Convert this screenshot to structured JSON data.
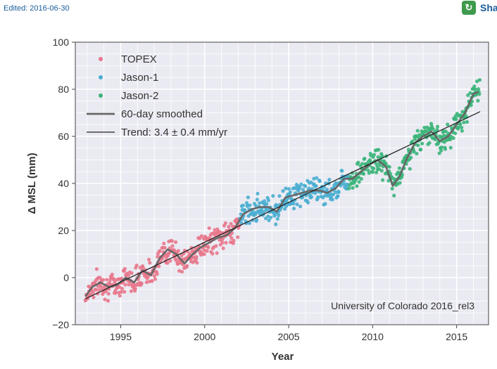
{
  "header": {
    "edited": "Edited: 2016-06-30",
    "share_label": "Sha"
  },
  "colors": {
    "topex": "#e8788c",
    "jason1": "#4aaed0",
    "jason2": "#3bb57a",
    "smoothed": "#666666",
    "trend": "#222222",
    "plot_bg": "#eaeaf2"
  },
  "chart_data": {
    "type": "scatter",
    "title": "",
    "xlabel": "Year",
    "ylabel": "Δ MSL (mm)",
    "xlim": [
      1992.3,
      2016.9
    ],
    "ylim": [
      -20,
      100
    ],
    "xticks": [
      1995,
      2000,
      2005,
      2010,
      2015
    ],
    "xtick_labels": [
      "1995",
      "2000",
      "2005",
      "2010",
      "2015"
    ],
    "yticks": [
      -20,
      0,
      20,
      40,
      60,
      80,
      100
    ],
    "ytick_labels": [
      "−20",
      "0",
      "20",
      "40",
      "60",
      "80",
      "100"
    ],
    "grid": true,
    "legend_position": "top-left",
    "annotation": "University of Colorado 2016_rel3",
    "series": [
      {
        "name": "TOPEX",
        "kind": "scatter",
        "x_range": [
          1992.9,
          2002.1
        ]
      },
      {
        "name": "Jason-1",
        "kind": "scatter",
        "x_range": [
          2002.1,
          2008.6
        ]
      },
      {
        "name": "Jason-2",
        "kind": "scatter",
        "x_range": [
          2008.6,
          2016.4
        ]
      },
      {
        "name": "60-day smoothed",
        "kind": "line"
      },
      {
        "name": "Trend: 3.4 ± 0.4 mm/yr",
        "kind": "line",
        "x": [
          1992.9,
          2016.4
        ],
        "y": [
          -9,
          70.5
        ]
      }
    ],
    "smoothed": {
      "x": [
        1992.9,
        1993.3,
        1993.8,
        1994.3,
        1994.8,
        1995.3,
        1995.8,
        1996.3,
        1996.8,
        1997.3,
        1997.8,
        1998.3,
        1998.8,
        1999.3,
        1999.8,
        2000.3,
        2000.8,
        2001.3,
        2001.8,
        2002.3,
        2002.8,
        2003.3,
        2003.8,
        2004.3,
        2004.8,
        2005.3,
        2005.8,
        2006.3,
        2006.8,
        2007.3,
        2007.8,
        2008.3,
        2008.8,
        2009.3,
        2009.8,
        2010.3,
        2010.8,
        2011.2,
        2011.6,
        2012.0,
        2012.5,
        2013.0,
        2013.5,
        2014.0,
        2014.5,
        2015.0,
        2015.5,
        2016.0,
        2016.3
      ],
      "y": [
        -8,
        -4,
        -2,
        -4,
        -3,
        0,
        -2,
        3,
        1,
        8,
        12,
        10,
        6,
        10,
        13,
        15,
        17,
        18,
        21,
        27,
        29,
        30,
        30,
        28,
        34,
        35,
        36,
        37,
        37,
        36,
        38,
        42,
        42,
        45,
        48,
        50,
        47,
        39,
        43,
        50,
        57,
        60,
        62,
        58,
        60,
        65,
        70,
        78,
        79
      ]
    }
  }
}
